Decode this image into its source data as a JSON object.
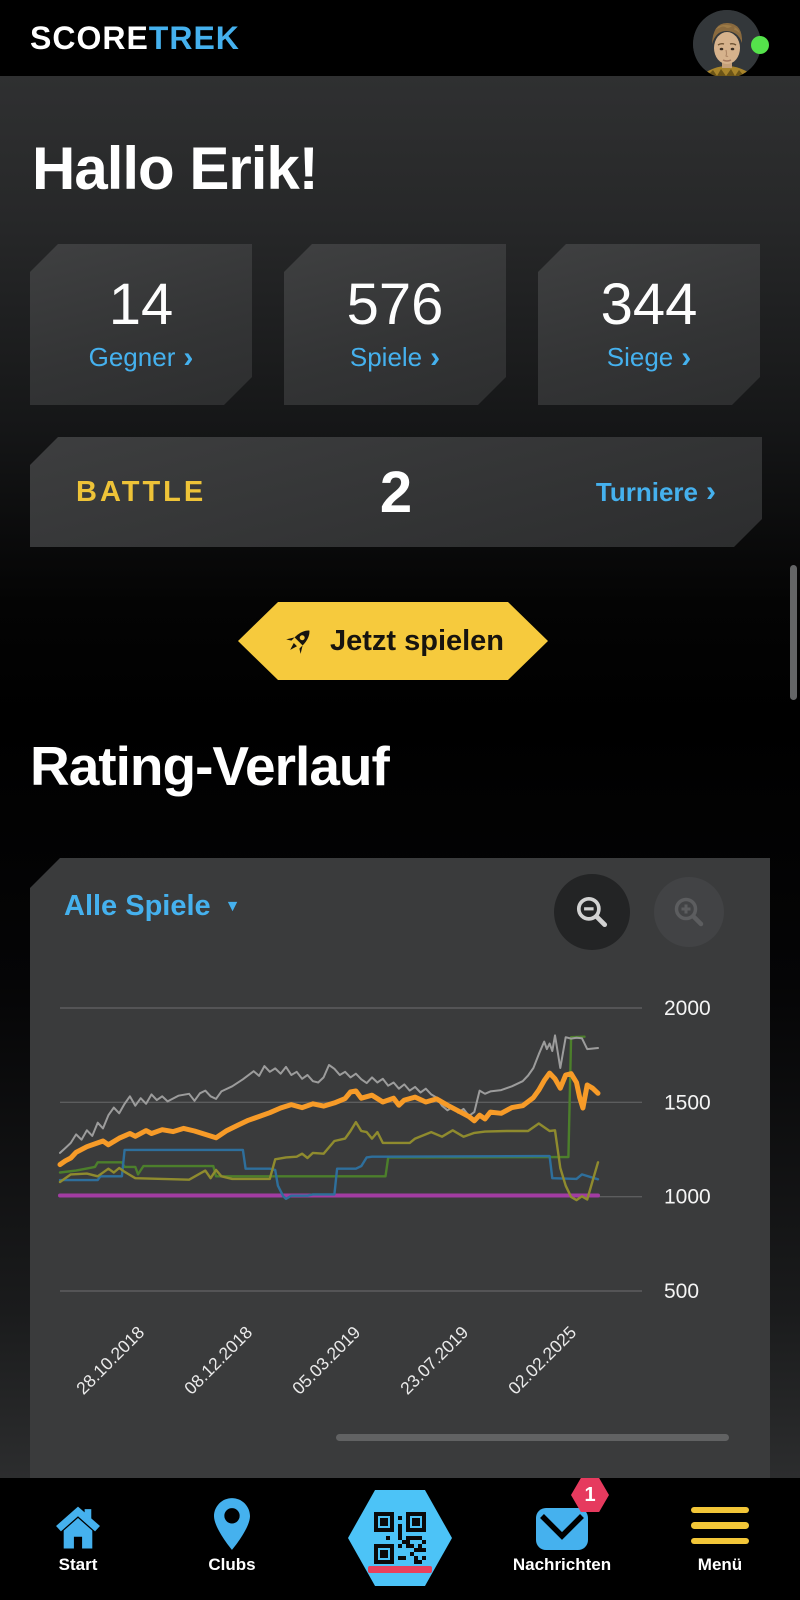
{
  "header": {
    "logo_primary": "SCORE",
    "logo_accent": "TREK"
  },
  "greeting": "Hallo Erik!",
  "ui": {
    "chevron": "›",
    "caret": "▼"
  },
  "stats": [
    {
      "value": "14",
      "label": "Gegner"
    },
    {
      "value": "576",
      "label": "Spiele"
    },
    {
      "value": "344",
      "label": "Siege"
    }
  ],
  "battle": {
    "title": "BATTLE",
    "count": "2",
    "link_label": "Turniere"
  },
  "play": {
    "label": "Jetzt spielen"
  },
  "rating": {
    "title": "Rating-Verlauf",
    "filter_label": "Alle Spiele"
  },
  "nav": {
    "start": "Start",
    "clubs": "Clubs",
    "messages": "Nachrichten",
    "messages_badge": "1",
    "menu": "Menü"
  },
  "colors": {
    "accent_blue": "#45b1ee",
    "accent_yellow": "#eec338",
    "button_yellow": "#f6ca3d",
    "badge_red": "#e63a5e",
    "online_green": "#55e34b",
    "card_gray": "#3a3b3c"
  },
  "chart_data": {
    "type": "line",
    "title": "Rating-Verlauf",
    "legend": "none",
    "grid": true,
    "y_ticks": [
      2000,
      1500,
      1000,
      500
    ],
    "ylim": [
      440,
      2100
    ],
    "x_tick_labels": [
      "28.10.2018",
      "08.12.2018",
      "05.03.2019",
      "23.07.2019",
      "02.02.2025"
    ],
    "series": [
      {
        "name": "purple-rating",
        "color": "#a23ca2",
        "width": 4,
        "points": [
          [
            0,
            1006
          ],
          [
            100,
            1006
          ]
        ]
      },
      {
        "name": "green-rating",
        "color": "#4c7f2b",
        "width": 2.4,
        "points": [
          [
            0,
            1128
          ],
          [
            3,
            1138
          ],
          [
            6.5,
            1158
          ],
          [
            7,
            1182
          ],
          [
            11.5,
            1182
          ],
          [
            12,
            1158
          ],
          [
            14,
            1158
          ],
          [
            14.5,
            1118
          ],
          [
            15.5,
            1162
          ],
          [
            28.5,
            1162
          ],
          [
            29,
            1108
          ],
          [
            60.5,
            1108
          ],
          [
            61,
            1208
          ],
          [
            94.5,
            1210
          ],
          [
            95,
            1845
          ],
          [
            97.5,
            1848
          ]
        ]
      },
      {
        "name": "blue-rating",
        "color": "#2e6f9c",
        "width": 2.4,
        "points": [
          [
            0,
            1088
          ],
          [
            7,
            1088
          ],
          [
            7.5,
            1108
          ],
          [
            11.5,
            1108
          ],
          [
            12,
            1248
          ],
          [
            34,
            1248
          ],
          [
            34.5,
            1148
          ],
          [
            39,
            1148
          ],
          [
            40,
            1142
          ],
          [
            40.5,
            1058
          ],
          [
            41.5,
            1002
          ],
          [
            42,
            988
          ],
          [
            43,
            1005
          ],
          [
            46,
            1005
          ],
          [
            47,
            1012
          ],
          [
            51,
            1012
          ],
          [
            51.5,
            1148
          ],
          [
            55,
            1148
          ],
          [
            56,
            1162
          ],
          [
            57,
            1208
          ],
          [
            58,
            1212
          ],
          [
            88,
            1215
          ],
          [
            91,
            1215
          ],
          [
            91.5,
            1098
          ],
          [
            96,
            1094
          ],
          [
            97,
            1118
          ],
          [
            100,
            1092
          ]
        ]
      },
      {
        "name": "olive-rating",
        "color": "#8f8b2e",
        "width": 2.4,
        "points": [
          [
            0,
            1078
          ],
          [
            2,
            1118
          ],
          [
            5,
            1122
          ],
          [
            7,
            1108
          ],
          [
            9,
            1148
          ],
          [
            10,
            1128
          ],
          [
            11,
            1152
          ],
          [
            12,
            1132
          ],
          [
            14,
            1098
          ],
          [
            19,
            1094
          ],
          [
            24,
            1090
          ],
          [
            27,
            1138
          ],
          [
            28,
            1098
          ],
          [
            29,
            1142
          ],
          [
            30,
            1108
          ],
          [
            32,
            1094
          ],
          [
            39,
            1094
          ],
          [
            40,
            1198
          ],
          [
            42,
            1208
          ],
          [
            44,
            1212
          ],
          [
            45,
            1228
          ],
          [
            46,
            1205
          ],
          [
            47,
            1232
          ],
          [
            49,
            1228
          ],
          [
            51,
            1295
          ],
          [
            53,
            1308
          ],
          [
            54,
            1348
          ],
          [
            55,
            1395
          ],
          [
            56,
            1348
          ],
          [
            57,
            1342
          ],
          [
            58,
            1308
          ],
          [
            59,
            1342
          ],
          [
            60,
            1285
          ],
          [
            65,
            1285
          ],
          [
            66,
            1308
          ],
          [
            69,
            1342
          ],
          [
            71,
            1318
          ],
          [
            73,
            1352
          ],
          [
            75,
            1318
          ],
          [
            77,
            1338
          ],
          [
            79,
            1345
          ],
          [
            83,
            1348
          ],
          [
            87,
            1348
          ],
          [
            89,
            1388
          ],
          [
            91,
            1348
          ],
          [
            92,
            1352
          ],
          [
            93,
            1152
          ],
          [
            94,
            1058
          ],
          [
            95,
            998
          ],
          [
            96,
            982
          ],
          [
            97,
            1002
          ],
          [
            98,
            985
          ],
          [
            100,
            1182
          ]
        ]
      },
      {
        "name": "gray-rating",
        "color": "#9c9c9c",
        "width": 2,
        "points": [
          [
            0,
            1232
          ],
          [
            1,
            1258
          ],
          [
            2,
            1285
          ],
          [
            3,
            1330
          ],
          [
            4,
            1302
          ],
          [
            5,
            1352
          ],
          [
            6,
            1322
          ],
          [
            7,
            1392
          ],
          [
            8,
            1362
          ],
          [
            9,
            1432
          ],
          [
            10,
            1472
          ],
          [
            11,
            1442
          ],
          [
            12,
            1492
          ],
          [
            13,
            1532
          ],
          [
            14,
            1482
          ],
          [
            15,
            1522
          ],
          [
            16,
            1492
          ],
          [
            17,
            1542
          ],
          [
            18,
            1512
          ],
          [
            19,
            1532
          ],
          [
            20,
            1505
          ],
          [
            22,
            1535
          ],
          [
            24,
            1545
          ],
          [
            25,
            1508
          ],
          [
            26,
            1548
          ],
          [
            27,
            1562
          ],
          [
            28,
            1532
          ],
          [
            29,
            1518
          ],
          [
            30,
            1558
          ],
          [
            32,
            1585
          ],
          [
            34,
            1622
          ],
          [
            36,
            1665
          ],
          [
            37,
            1640
          ],
          [
            38,
            1692
          ],
          [
            39,
            1662
          ],
          [
            40,
            1680
          ],
          [
            41,
            1652
          ],
          [
            42,
            1688
          ],
          [
            43,
            1645
          ],
          [
            44,
            1662
          ],
          [
            45,
            1625
          ],
          [
            46,
            1645
          ],
          [
            47,
            1612
          ],
          [
            48,
            1605
          ],
          [
            49,
            1632
          ],
          [
            50,
            1698
          ],
          [
            51,
            1678
          ],
          [
            52,
            1645
          ],
          [
            53,
            1662
          ],
          [
            54,
            1632
          ],
          [
            55,
            1652
          ],
          [
            56,
            1622
          ],
          [
            57,
            1602
          ],
          [
            58,
            1632
          ],
          [
            59,
            1605
          ],
          [
            60,
            1625
          ],
          [
            61,
            1588
          ],
          [
            62,
            1605
          ],
          [
            63,
            1572
          ],
          [
            64,
            1595
          ],
          [
            65,
            1562
          ],
          [
            66,
            1582
          ],
          [
            67,
            1552
          ],
          [
            68,
            1572
          ],
          [
            69,
            1542
          ],
          [
            70,
            1525
          ],
          [
            71,
            1482
          ],
          [
            72,
            1458
          ],
          [
            73,
            1475
          ],
          [
            74,
            1445
          ],
          [
            75,
            1465
          ],
          [
            76,
            1428
          ],
          [
            77,
            1448
          ],
          [
            78,
            1562
          ],
          [
            79,
            1545
          ],
          [
            80,
            1558
          ],
          [
            82,
            1565
          ],
          [
            84,
            1585
          ],
          [
            86,
            1612
          ],
          [
            87,
            1642
          ],
          [
            88,
            1682
          ],
          [
            89,
            1755
          ],
          [
            90,
            1822
          ],
          [
            90.5,
            1782
          ],
          [
            91,
            1812
          ],
          [
            91.5,
            1772
          ],
          [
            92,
            1855
          ],
          [
            93,
            1682
          ],
          [
            94,
            1845
          ],
          [
            95,
            1838
          ],
          [
            96,
            1842
          ],
          [
            97,
            1840
          ],
          [
            98,
            1782
          ],
          [
            100,
            1788
          ]
        ]
      },
      {
        "name": "orange-rating-main",
        "color": "#f79b28",
        "width": 5,
        "points": [
          [
            0,
            1170
          ],
          [
            1,
            1190
          ],
          [
            2,
            1205
          ],
          [
            3,
            1235
          ],
          [
            5,
            1265
          ],
          [
            7,
            1285
          ],
          [
            8,
            1295
          ],
          [
            9,
            1275
          ],
          [
            11,
            1310
          ],
          [
            13,
            1335
          ],
          [
            14,
            1320
          ],
          [
            16,
            1350
          ],
          [
            17,
            1335
          ],
          [
            19,
            1355
          ],
          [
            21,
            1345
          ],
          [
            23,
            1362
          ],
          [
            25,
            1348
          ],
          [
            27,
            1330
          ],
          [
            29,
            1312
          ],
          [
            31,
            1350
          ],
          [
            33,
            1378
          ],
          [
            35,
            1405
          ],
          [
            37,
            1425
          ],
          [
            39,
            1445
          ],
          [
            41,
            1470
          ],
          [
            43,
            1488
          ],
          [
            45,
            1472
          ],
          [
            47,
            1492
          ],
          [
            49,
            1480
          ],
          [
            51,
            1497
          ],
          [
            53,
            1520
          ],
          [
            54,
            1555
          ],
          [
            55,
            1560
          ],
          [
            56,
            1522
          ],
          [
            58,
            1538
          ],
          [
            60,
            1502
          ],
          [
            62,
            1522
          ],
          [
            63,
            1485
          ],
          [
            64,
            1512
          ],
          [
            66,
            1528
          ],
          [
            68,
            1502
          ],
          [
            70,
            1518
          ],
          [
            72,
            1485
          ],
          [
            74,
            1455
          ],
          [
            76,
            1425
          ],
          [
            77,
            1402
          ],
          [
            78,
            1432
          ],
          [
            79,
            1412
          ],
          [
            80,
            1448
          ],
          [
            82,
            1442
          ],
          [
            84,
            1472
          ],
          [
            86,
            1482
          ],
          [
            88,
            1525
          ],
          [
            89,
            1565
          ],
          [
            90,
            1615
          ],
          [
            91,
            1655
          ],
          [
            92,
            1625
          ],
          [
            93,
            1575
          ],
          [
            94,
            1645
          ],
          [
            95,
            1652
          ],
          [
            96,
            1605
          ],
          [
            96.6,
            1525
          ],
          [
            97.2,
            1470
          ],
          [
            98,
            1592
          ],
          [
            99,
            1575
          ],
          [
            100,
            1548
          ]
        ]
      }
    ]
  }
}
